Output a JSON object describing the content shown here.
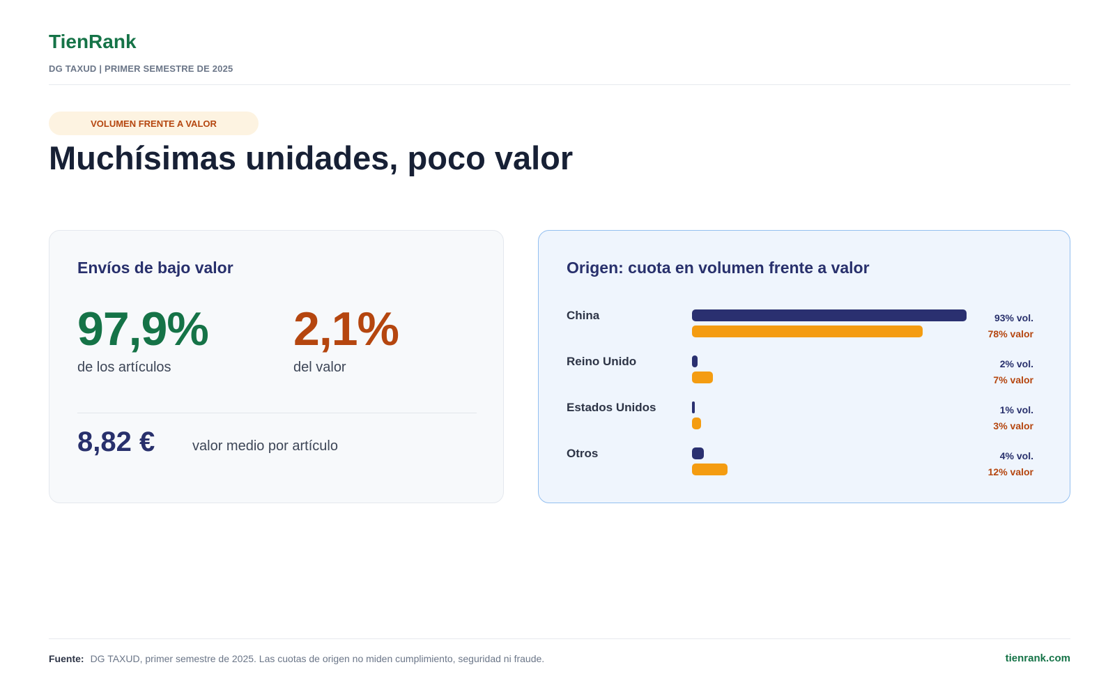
{
  "header": {
    "brand": "TienRank",
    "subtitle": "DG TAXUD | PRIMER SEMESTRE DE 2025"
  },
  "kicker": "VOLUMEN FRENTE A VALOR",
  "title": "Muchísimas unidades, poco valor",
  "left_card": {
    "title": "Envíos de bajo valor",
    "items_share": "97,9%",
    "items_caption": "de los artículos",
    "value_share": "2,1%",
    "value_caption": "del valor",
    "avg_value": "8,82 €",
    "avg_caption": "valor medio por artículo"
  },
  "right_card": {
    "title": "Origen: cuota en volumen frente a valor"
  },
  "chart_data": {
    "type": "bar",
    "orientation": "horizontal",
    "title": "Origen: cuota en volumen frente a valor",
    "categories": [
      "China",
      "Reino Unido",
      "Estados Unidos",
      "Otros"
    ],
    "series": [
      {
        "name": "vol.",
        "values": [
          93,
          2,
          1,
          4
        ],
        "labels": [
          "93% vol.",
          "2% vol.",
          "1% vol.",
          "4% vol."
        ],
        "color": "#2a3070"
      },
      {
        "name": "valor",
        "values": [
          78,
          7,
          3,
          12
        ],
        "labels": [
          "78% valor",
          "7% valor",
          "3% valor",
          "12% valor"
        ],
        "color": "#f49c11"
      }
    ],
    "xlim": [
      0,
      100
    ],
    "grid": false
  },
  "footer": {
    "label": "Fuente:",
    "text": "DG TAXUD, primer semestre de 2025. Las cuotas de origen no miden cumplimiento, seguridad ni fraude.",
    "site": "tienrank.com"
  },
  "colors": {
    "brand_green": "#157347",
    "accent_orange": "#b5460f",
    "navy": "#28306c",
    "bar_orange": "#f49c11"
  }
}
